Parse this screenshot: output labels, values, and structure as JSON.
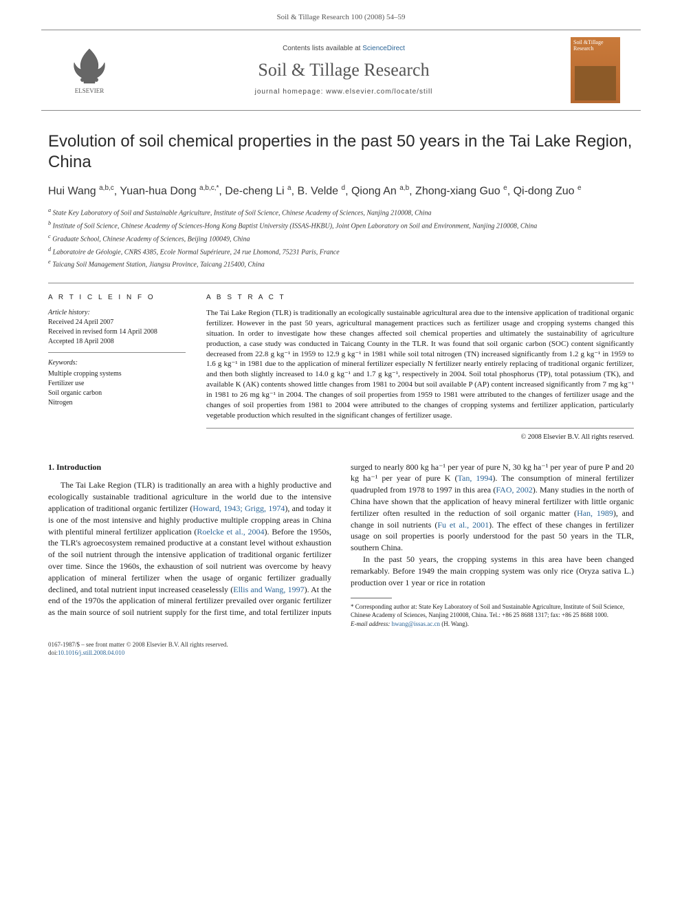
{
  "header": {
    "citation": "Soil & Tillage Research 100 (2008) 54–59"
  },
  "masthead": {
    "contents_prefix": "Contents lists available at ",
    "contents_link": "ScienceDirect",
    "journal_name": "Soil & Tillage Research",
    "homepage_prefix": "journal homepage: ",
    "homepage_url": "www.elsevier.com/locate/still",
    "publisher_name": "ELSEVIER",
    "cover_title": "Soil &Tillage Research"
  },
  "title": "Evolution of soil chemical properties in the past 50 years in the Tai Lake Region, China",
  "authors_html": "Hui Wang <sup>a,b,c</sup>, Yuan-hua Dong <sup>a,b,c,*</sup>, De-cheng Li <sup>a</sup>, B. Velde <sup>d</sup>, Qiong An <sup>a,b</sup>, Zhong-xiang Guo <sup>e</sup>, Qi-dong Zuo <sup>e</sup>",
  "affiliations": [
    "a State Key Laboratory of Soil and Sustainable Agriculture, Institute of Soil Science, Chinese Academy of Sciences, Nanjing 210008, China",
    "b Institute of Soil Science, Chinese Academy of Sciences-Hong Kong Baptist University (ISSAS-HKBU), Joint Open Laboratory on Soil and Environment, Nanjing 210008, China",
    "c Graduate School, Chinese Academy of Sciences, Beijing 100049, China",
    "d Laboratoire de Géologie, CNRS 4385, Ecole Normal Supérieure, 24 rue Lhomond, 75231 Paris, France",
    "e Taicang Soil Management Station, Jiangsu Province, Taicang 215400, China"
  ],
  "article_info": {
    "heading": "A R T I C L E  I N F O",
    "history_label": "Article history:",
    "history": [
      "Received 24 April 2007",
      "Received in revised form 14 April 2008",
      "Accepted 18 April 2008"
    ],
    "keywords_label": "Keywords:",
    "keywords": [
      "Multiple cropping systems",
      "Fertilizer use",
      "Soil organic carbon",
      "Nitrogen"
    ]
  },
  "abstract": {
    "heading": "A B S T R A C T",
    "text": "The Tai Lake Region (TLR) is traditionally an ecologically sustainable agricultural area due to the intensive application of traditional organic fertilizer. However in the past 50 years, agricultural management practices such as fertilizer usage and cropping systems changed this situation. In order to investigate how these changes affected soil chemical properties and ultimately the sustainability of agriculture production, a case study was conducted in Taicang County in the TLR. It was found that soil organic carbon (SOC) content significantly decreased from 22.8 g kg⁻¹ in 1959 to 12.9 g kg⁻¹ in 1981 while soil total nitrogen (TN) increased significantly from 1.2 g kg⁻¹ in 1959 to 1.6 g kg⁻¹ in 1981 due to the application of mineral fertilizer especially N fertilizer nearly entirely replacing of traditional organic fertilizer, and then both slightly increased to 14.0 g kg⁻¹ and 1.7 g kg⁻¹, respectively in 2004. Soil total phosphorus (TP), total potassium (TK), and available K (AK) contents showed little changes from 1981 to 2004 but soil available P (AP) content increased significantly from 7 mg kg⁻¹ in 1981 to 26 mg kg⁻¹ in 2004. The changes of soil properties from 1959 to 1981 were attributed to the changes of fertilizer usage and the changes of soil properties from 1981 to 2004 were attributed to the changes of cropping systems and fertilizer application, particularly vegetable production which resulted in the significant changes of fertilizer usage.",
    "copyright": "© 2008 Elsevier B.V. All rights reserved."
  },
  "section1": {
    "heading": "1. Introduction",
    "para1_pre": "The Tai Lake Region (TLR) is traditionally an area with a highly productive and ecologically sustainable traditional agriculture in the world due to the intensive application of traditional organic fertilizer (",
    "ref1": "Howard, 1943; Grigg, 1974",
    "para1_mid": "), and today it is one of the most intensive and highly productive multiple cropping areas in China with plentiful mineral fertilizer application (",
    "ref2": "Roelcke et al., 2004",
    "para1_post": "). Before the 1950s, the TLR's agroecosystem remained productive at a constant level without exhaustion of the soil nutrient through the intensive application of traditional organic fertilizer over time. Since the 1960s, the exhaustion of soil nutrient was overcome by heavy application of mineral fertilizer when the usage of organic fertilizer gradually declined, and total nutrient input increased ceaselessly (",
    "ref3": "Ellis and Wang, 1997",
    "para1_after3": "). At the end of the 1970s the application of mineral fertilizer prevailed over organic fertilizer as the main source of soil nutrient supply for the first time, and total fertilizer inputs surged to nearly 800 kg ha⁻¹ per year of pure N, 30 kg ha⁻¹ per year of pure P and 20 kg ha⁻¹ per year of pure K (",
    "ref4": "Tan, 1994",
    "para1_after4": "). The consumption of mineral fertilizer quadrupled from 1978 to 1997 in this area (",
    "ref5": "FAO, 2002",
    "para1_after5": "). Many studies in the north of China have shown that the application of heavy mineral fertilizer with little organic fertilizer often resulted in the reduction of soil organic matter (",
    "ref6": "Han, 1989",
    "para1_after6": "), and change in soil nutrients (",
    "ref7": "Fu et al., 2001",
    "para1_after7": "). The effect of these changes in fertilizer usage on soil properties is poorly understood for the past 50 years in the TLR, southern China.",
    "para2": "In the past 50 years, the cropping systems in this area have been changed remarkably. Before 1949 the main cropping system was only rice (Oryza sativa L.) production over 1 year or rice in rotation"
  },
  "footnotes": {
    "corresponding": "* Corresponding author at: State Key Laboratory of Soil and Sustainable Agriculture, Institute of Soil Science, Chinese Academy of Sciences, Nanjing 210008, China. Tel.: +86 25 8688 1317; fax: +86 25 8688 1000.",
    "email_label": "E-mail address: ",
    "email": "hwang@issas.ac.cn",
    "email_who": " (H. Wang)."
  },
  "footer": {
    "front_matter": "0167-1987/$ – see front matter © 2008 Elsevier B.V. All rights reserved.",
    "doi_label": "doi:",
    "doi": "10.1016/j.still.2008.04.010"
  },
  "colors": {
    "link": "#2a6496",
    "rule": "#888888",
    "cover_bg": "#c97a3a"
  }
}
